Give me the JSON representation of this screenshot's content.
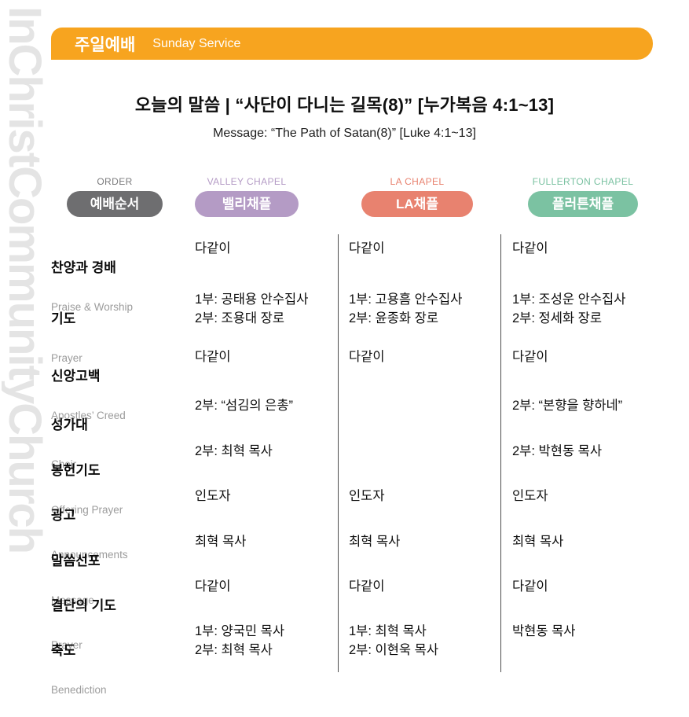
{
  "watermark": "InChristCommunityChurch",
  "banner": {
    "title_ko": "주일예배",
    "title_en": "Sunday Service",
    "bg_color": "#F7A41F"
  },
  "sermon": {
    "title_ko": "오늘의 말씀   |   “사단이 다니는 길목(8)”  [누가복음 4:1~13]",
    "title_en": "Message:  “The Path of Satan(8)”  [Luke 4:1~13]"
  },
  "columns": [
    {
      "label_en": "ORDER",
      "pill": "예배순서",
      "color": "#6E6E70",
      "label_color": "#7A7A7C"
    },
    {
      "label_en": "VALLEY CHAPEL",
      "pill": "밸리채플",
      "color": "#B49BC5"
    },
    {
      "label_en": "LA CHAPEL",
      "pill": "LA채플",
      "color": "#E8826F"
    },
    {
      "label_en": "FULLERTON CHAPEL",
      "pill": "플러튼채플",
      "color": "#7BC2A2"
    }
  ],
  "rows": [
    {
      "order_ko": "찬양과 경배",
      "order_en": "Praise & Worship",
      "valley": "다같이",
      "la": "다같이",
      "fullerton": "다같이"
    },
    {
      "order_ko": "기도",
      "order_en": "Prayer",
      "valley": "1부: 공태용 안수집사\n2부: 조용대 장로",
      "la": "1부: 고용흠 안수집사\n2부: 윤종화 장로",
      "fullerton": "1부: 조성운 안수집사\n2부: 정세화 장로"
    },
    {
      "order_ko": "신앙고백",
      "order_en": "Apostles’ Creed",
      "valley": "다같이",
      "la": "다같이",
      "fullerton": "다같이"
    },
    {
      "order_ko": "성가대",
      "order_en": "Choir",
      "valley": "2부: “섬김의 은총”",
      "la": "",
      "fullerton": "2부: “본향을 향하네”"
    },
    {
      "order_ko": "봉헌기도",
      "order_en": "Offering Prayer",
      "valley": "2부: 최혁 목사",
      "la": "",
      "fullerton": "2부: 박현동 목사"
    },
    {
      "order_ko": "광고",
      "order_en": "Announcements",
      "valley": "인도자",
      "la": "인도자",
      "fullerton": "인도자"
    },
    {
      "order_ko": "말씀선포",
      "order_en": "Message",
      "valley": "최혁 목사",
      "la": "최혁 목사",
      "fullerton": "최혁 목사"
    },
    {
      "order_ko": "결단의 기도",
      "order_en": "Prayer",
      "valley": "다같이",
      "la": "다같이",
      "fullerton": "다같이"
    },
    {
      "order_ko": "축도",
      "order_en": "Benediction",
      "valley": "1부: 양국민 목사\n2부: 최혁 목사",
      "la": "1부: 최혁 목사\n2부: 이현욱 목사",
      "fullerton": "박현동 목사"
    }
  ]
}
